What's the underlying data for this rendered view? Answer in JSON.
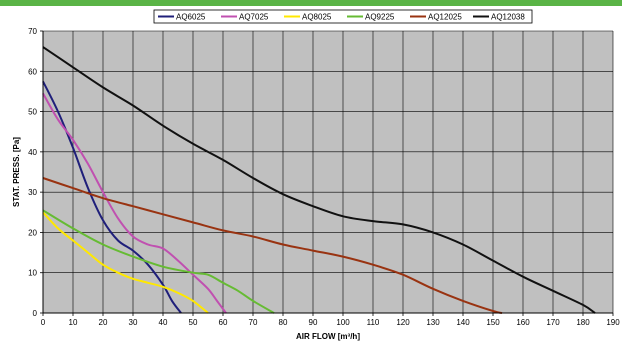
{
  "chart_data": {
    "type": "line",
    "title": "",
    "xlabel": "AIR FLOW [m³/h]",
    "ylabel": "STAT. PRESS. [Pa]",
    "xlim": [
      0,
      190
    ],
    "ylim": [
      0,
      70
    ],
    "x_ticks": [
      0,
      10,
      20,
      30,
      40,
      50,
      60,
      70,
      80,
      90,
      100,
      110,
      120,
      130,
      140,
      150,
      160,
      170,
      180,
      190
    ],
    "y_ticks": [
      0,
      10,
      20,
      30,
      40,
      50,
      60,
      70
    ],
    "grid": true,
    "legend_position": "top",
    "plot_background": "#c0c0c0",
    "series": [
      {
        "name": "AQ6025",
        "color": "#1f1f7a",
        "x": [
          0,
          5,
          10,
          15,
          20,
          25,
          30,
          35,
          40,
          43,
          46
        ],
        "y": [
          57.5,
          50,
          41,
          31,
          23,
          18,
          15.5,
          12,
          7,
          3,
          0
        ]
      },
      {
        "name": "AQ7025",
        "color": "#c050b0",
        "x": [
          0,
          5,
          10,
          15,
          20,
          25,
          30,
          35,
          40,
          45,
          50,
          55,
          58,
          61
        ],
        "y": [
          54.5,
          48,
          43,
          37,
          30,
          23.5,
          19,
          17,
          16,
          13,
          9.5,
          6,
          3,
          0
        ]
      },
      {
        "name": "AQ8025",
        "color": "#ffe800",
        "x": [
          0,
          5,
          10,
          15,
          20,
          25,
          30,
          35,
          40,
          45,
          50,
          55
        ],
        "y": [
          25,
          21,
          18,
          15,
          12,
          10,
          8.5,
          7.5,
          6.5,
          5,
          3,
          0
        ]
      },
      {
        "name": "AQ9225",
        "color": "#66bb33",
        "x": [
          0,
          10,
          20,
          30,
          40,
          50,
          55,
          60,
          65,
          70,
          77
        ],
        "y": [
          25.5,
          21,
          17,
          14,
          11.5,
          10,
          9.5,
          7.5,
          5.5,
          3,
          0
        ]
      },
      {
        "name": "AQ12025",
        "color": "#993311",
        "x": [
          0,
          10,
          20,
          30,
          40,
          50,
          60,
          70,
          80,
          90,
          100,
          110,
          120,
          130,
          140,
          150,
          153
        ],
        "y": [
          33.5,
          31,
          28.5,
          26.5,
          24.5,
          22.5,
          20.5,
          19,
          17,
          15.5,
          14,
          12,
          9.5,
          6,
          3,
          0.5,
          0
        ]
      },
      {
        "name": "AQ12038",
        "color": "#111111",
        "x": [
          0,
          10,
          20,
          30,
          40,
          50,
          60,
          70,
          80,
          90,
          100,
          110,
          120,
          130,
          140,
          150,
          160,
          170,
          180,
          184
        ],
        "y": [
          66,
          61,
          56,
          51.5,
          46.5,
          42,
          38,
          33.5,
          29.5,
          26.5,
          24,
          22.8,
          22,
          20,
          17,
          13,
          9,
          5.5,
          2,
          0
        ]
      }
    ]
  }
}
